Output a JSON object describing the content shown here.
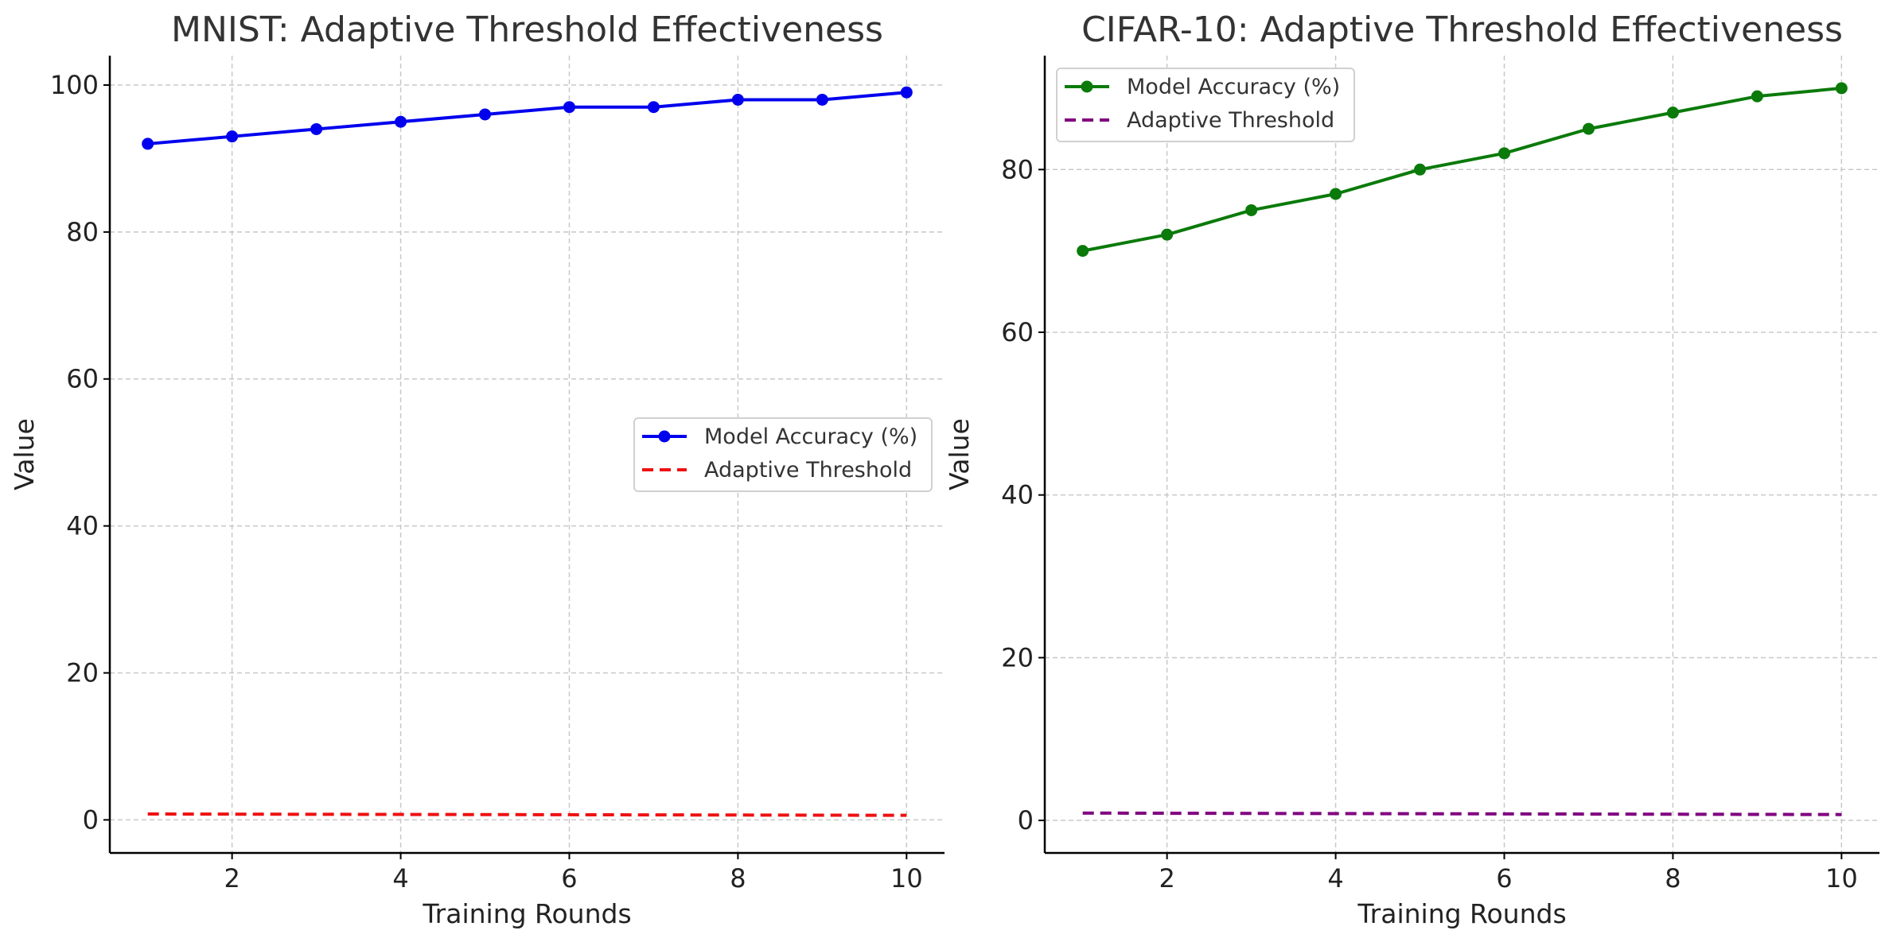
{
  "chart_data": [
    {
      "type": "line",
      "title": "MNIST: Adaptive Threshold Effectiveness",
      "xlabel": "Training Rounds",
      "ylabel": "Value",
      "x": [
        1,
        2,
        3,
        4,
        5,
        6,
        7,
        8,
        9,
        10
      ],
      "xlim": [
        0.55,
        10.45
      ],
      "ylim": [
        -4.5,
        104
      ],
      "xticks": [
        2,
        4,
        6,
        8,
        10
      ],
      "yticks": [
        0,
        20,
        40,
        60,
        80,
        100
      ],
      "grid": true,
      "legend_position": "center-right",
      "series": [
        {
          "name": "Model Accuracy (%)",
          "values": [
            92,
            93,
            94,
            95,
            96,
            97,
            97,
            98,
            98,
            99
          ],
          "color": "#0000ee",
          "style": "solid",
          "marker": "circle"
        },
        {
          "name": "Adaptive Threshold",
          "values": [
            0.8,
            0.78,
            0.76,
            0.74,
            0.72,
            0.7,
            0.68,
            0.66,
            0.64,
            0.62
          ],
          "color": "#ee1111",
          "style": "dashed",
          "marker": "none"
        }
      ]
    },
    {
      "type": "line",
      "title": "CIFAR-10: Adaptive Threshold Effectiveness",
      "xlabel": "Training Rounds",
      "ylabel": "Value",
      "x": [
        1,
        2,
        3,
        4,
        5,
        6,
        7,
        8,
        9,
        10
      ],
      "xlim": [
        0.55,
        10.45
      ],
      "ylim": [
        -4,
        94
      ],
      "xticks": [
        2,
        4,
        6,
        8,
        10
      ],
      "yticks": [
        0,
        20,
        40,
        60,
        80
      ],
      "grid": true,
      "legend_position": "top-left",
      "series": [
        {
          "name": "Model Accuracy (%)",
          "values": [
            70,
            72,
            75,
            77,
            80,
            82,
            85,
            87,
            89,
            90
          ],
          "color": "#0a7a0a",
          "style": "solid",
          "marker": "circle"
        },
        {
          "name": "Adaptive Threshold",
          "values": [
            0.9,
            0.88,
            0.86,
            0.84,
            0.82,
            0.8,
            0.78,
            0.76,
            0.74,
            0.72
          ],
          "color": "#800080",
          "style": "dashed",
          "marker": "none"
        }
      ]
    }
  ]
}
